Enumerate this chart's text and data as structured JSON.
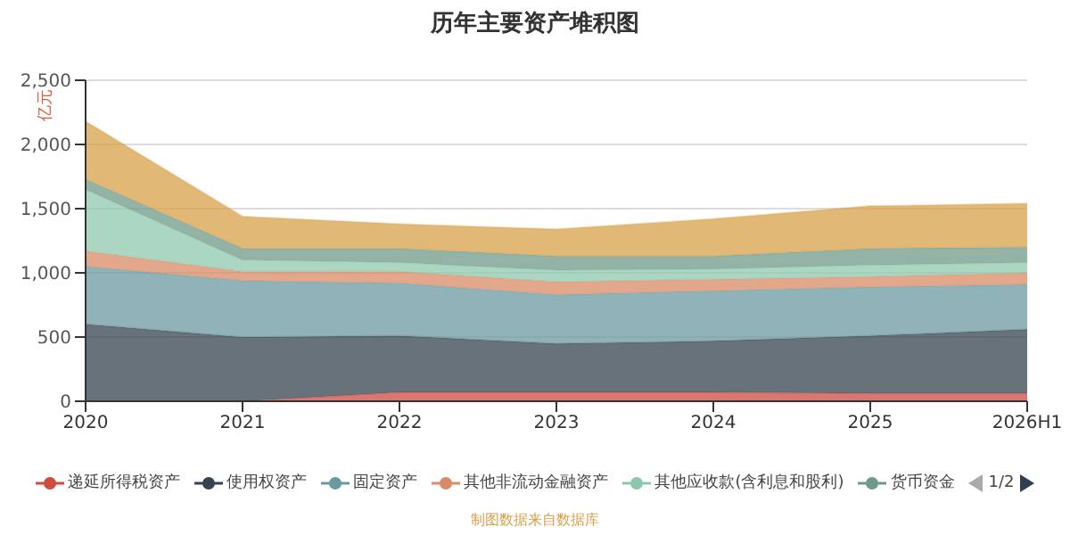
{
  "chart_data": {
    "type": "area",
    "title": "历年主要资产堆积图",
    "ylabel": "亿元",
    "stacked": true,
    "categories": [
      "2020",
      "2021",
      "2022",
      "2023",
      "2024",
      "2025",
      "2026H1"
    ],
    "series": [
      {
        "name": "递延所得税资产",
        "color": "#cf4a3f",
        "values": [
          0,
          0,
          70,
          70,
          70,
          60,
          60
        ]
      },
      {
        "name": "使用权资产",
        "color": "#36434f",
        "values": [
          600,
          500,
          440,
          380,
          400,
          450,
          500
        ]
      },
      {
        "name": "固定资产",
        "color": "#6a9aa0",
        "values": [
          450,
          440,
          410,
          380,
          390,
          380,
          350
        ]
      },
      {
        "name": "其他非流动金融资产",
        "color": "#d98b66",
        "values": [
          120,
          70,
          90,
          100,
          90,
          80,
          90
        ]
      },
      {
        "name": "其他应收款(含利息和股利)",
        "color": "#8dc8ae",
        "values": [
          480,
          90,
          70,
          90,
          80,
          90,
          80
        ]
      },
      {
        "name": "货币资金",
        "color": "#6f9a8a",
        "values": [
          80,
          90,
          110,
          110,
          100,
          130,
          120
        ]
      },
      {
        "color": "#d8a04a",
        "values": [
          450,
          250,
          190,
          210,
          290,
          330,
          340
        ]
      }
    ],
    "ylim": [
      0,
      2500
    ],
    "yticks": [
      0,
      500,
      {
        "value": 1000,
        "label": "1,000"
      },
      {
        "value": 1500,
        "label": "1,500"
      },
      {
        "value": 2000,
        "label": "2,000"
      },
      {
        "value": 2500,
        "label": "2,500"
      }
    ],
    "grid": "y",
    "legend": "bottom",
    "annotations": [
      "制图数据来自数据库",
      "1/2"
    ]
  }
}
